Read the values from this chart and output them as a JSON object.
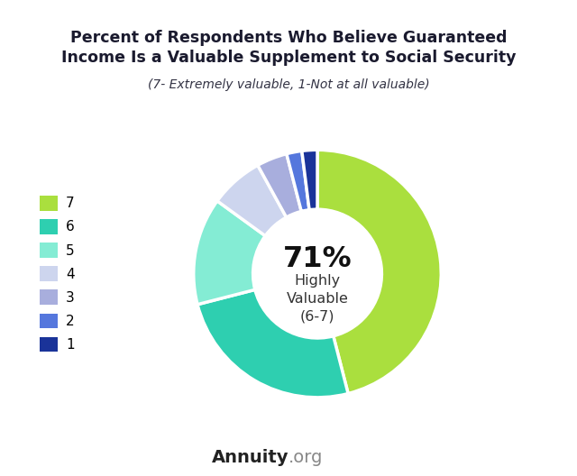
{
  "title_main": "Percent of Respondents Who Believe Guaranteed\nIncome Is a Valuable Supplement to Social Security",
  "title_sub": "(7- Extremely valuable, 1-Not at all valuable)",
  "center_text_pct": "71%",
  "center_text_label": "Highly\nValuable\n(6-7)",
  "values": [
    46,
    25,
    14,
    7,
    4,
    2,
    2
  ],
  "labels": [
    "7",
    "6",
    "5",
    "4",
    "3",
    "2",
    "1"
  ],
  "colors": [
    "#aadf3e",
    "#2ecfb0",
    "#84ecd4",
    "#cdd5ee",
    "#a8aedd",
    "#5577dd",
    "#1a3399"
  ],
  "bg_top": "#e8edf5",
  "bg_bottom": "#ffffff",
  "watermark_bold": "Annuity",
  "watermark_regular": ".org",
  "watermark_bold_color": "#222222",
  "watermark_regular_color": "#888888",
  "legend_labels": [
    "7",
    "6",
    "5",
    "4",
    "3",
    "2",
    "1"
  ],
  "center_hole_color": "#ffffff"
}
